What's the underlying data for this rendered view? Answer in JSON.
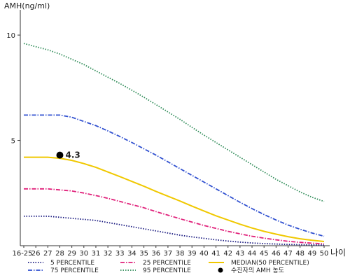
{
  "chart_data": {
    "type": "line",
    "ylabel": "AMH(ng/ml)",
    "xlabel": "나이",
    "y_ticks": [
      "10",
      "5"
    ],
    "y_tick_values": [
      10,
      5
    ],
    "ylim": [
      0,
      11.2
    ],
    "x_ticks": [
      "16-25",
      "26",
      "27",
      "28",
      "29",
      "30",
      "31",
      "32",
      "33",
      "34",
      "35",
      "36",
      "37",
      "38",
      "39",
      "40",
      "41",
      "42",
      "43",
      "44",
      "45",
      "46",
      "47",
      "48",
      "49",
      "50"
    ],
    "grid": false,
    "legend_position": "bottom",
    "series": [
      {
        "name": "5 PERCENTILE",
        "color": "#1a1a80",
        "style": "dotted",
        "values": [
          1.4,
          1.4,
          1.4,
          1.35,
          1.3,
          1.25,
          1.2,
          1.1,
          1.0,
          0.9,
          0.8,
          0.7,
          0.6,
          0.5,
          0.42,
          0.35,
          0.28,
          0.22,
          0.17,
          0.13,
          0.1,
          0.08,
          0.06,
          0.05,
          0.04,
          0.03
        ]
      },
      {
        "name": "25 PERCENTILE",
        "color": "#e0207a",
        "style": "dashdot",
        "values": [
          2.7,
          2.7,
          2.7,
          2.65,
          2.6,
          2.5,
          2.38,
          2.25,
          2.1,
          1.95,
          1.8,
          1.62,
          1.45,
          1.28,
          1.12,
          0.96,
          0.82,
          0.68,
          0.56,
          0.45,
          0.36,
          0.28,
          0.21,
          0.16,
          0.12,
          0.09
        ]
      },
      {
        "name": "MEDIAN(50 PERCENTILE)",
        "color": "#f0c800",
        "style": "solid",
        "values": [
          4.2,
          4.2,
          4.2,
          4.15,
          4.05,
          3.9,
          3.72,
          3.5,
          3.28,
          3.05,
          2.82,
          2.58,
          2.35,
          2.12,
          1.88,
          1.65,
          1.42,
          1.22,
          1.02,
          0.84,
          0.68,
          0.55,
          0.43,
          0.33,
          0.26,
          0.2
        ]
      },
      {
        "name": "75 PERCENTILE",
        "color": "#3050d0",
        "style": "dashdot",
        "values": [
          6.2,
          6.2,
          6.2,
          6.2,
          6.1,
          5.9,
          5.7,
          5.45,
          5.18,
          4.9,
          4.6,
          4.3,
          3.98,
          3.66,
          3.34,
          3.02,
          2.7,
          2.38,
          2.06,
          1.76,
          1.48,
          1.22,
          0.98,
          0.78,
          0.6,
          0.45
        ]
      },
      {
        "name": "95 PERCENTILE",
        "color": "#2e8b57",
        "style": "dotted",
        "values": [
          9.6,
          9.45,
          9.3,
          9.1,
          8.85,
          8.6,
          8.3,
          8.0,
          7.7,
          7.38,
          7.05,
          6.7,
          6.35,
          6.0,
          5.62,
          5.25,
          4.9,
          4.55,
          4.2,
          3.85,
          3.5,
          3.15,
          2.85,
          2.55,
          2.3,
          2.1
        ]
      }
    ],
    "marker": {
      "name": "수진자의 AMH 농도",
      "x_index": 3,
      "y": 4.3,
      "label": "4.3",
      "color": "#000000"
    }
  }
}
